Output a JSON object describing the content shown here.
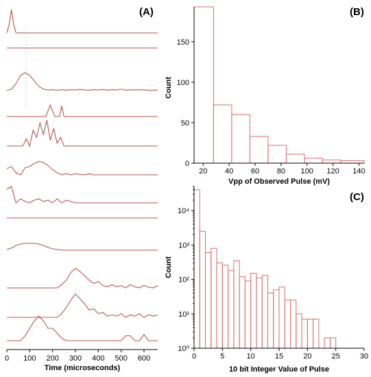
{
  "colors": {
    "trace": "#b5524b",
    "bar": "#d96a6a",
    "axis": "#000000",
    "marker": "#c8d8e8"
  },
  "chart_data": [
    {
      "panel": "(A)",
      "type": "line",
      "xlabel": "Time (microseconds)",
      "xlim": [
        0,
        660
      ],
      "xticks": [
        0,
        100,
        200,
        300,
        400,
        500,
        600
      ],
      "series": [
        {
          "x": [
            0,
            10,
            20,
            30,
            40,
            660
          ],
          "y": [
            0,
            0.3,
            0.85,
            0.3,
            0,
            0
          ]
        },
        {
          "x": [
            0,
            660
          ],
          "y": [
            0,
            0
          ]
        },
        {
          "x": [
            0,
            20,
            40,
            60,
            80,
            100,
            120,
            140,
            160,
            180,
            200,
            220,
            240,
            260,
            280,
            300,
            320,
            340,
            360,
            380,
            400,
            420,
            440,
            460,
            480,
            500,
            520,
            540,
            560,
            580,
            600,
            620,
            640,
            660
          ],
          "y": [
            0,
            0.05,
            0.25,
            0.55,
            0.65,
            0.55,
            0.35,
            0.15,
            0.05,
            0.02,
            0.03,
            0.01,
            0.03,
            0.01,
            0.03,
            0.02,
            0.04,
            0.02,
            0.01,
            0.03,
            0.02,
            0.04,
            0.01,
            0.03,
            0.02,
            0.05,
            0.01,
            0.03,
            0.02,
            0.03,
            0.02,
            0.01,
            0,
            0.03
          ]
        },
        {
          "x": [
            0,
            170,
            190,
            210,
            230,
            240,
            250,
            270,
            660
          ],
          "y": [
            0,
            0,
            0.6,
            0,
            0,
            0.55,
            0,
            0,
            0
          ]
        },
        {
          "x": [
            0,
            70,
            85,
            100,
            115,
            130,
            145,
            160,
            175,
            190,
            205,
            220,
            235,
            250,
            660
          ],
          "y": [
            0,
            0,
            0.25,
            0,
            0.55,
            0.3,
            0.8,
            0.4,
            0.9,
            0.2,
            0.6,
            0.1,
            0.3,
            0,
            0
          ]
        },
        {
          "x": [
            0,
            20,
            40,
            60,
            80,
            100,
            120,
            140,
            160,
            180,
            200,
            220,
            240,
            260,
            280,
            300,
            320,
            340,
            360,
            380,
            400,
            420,
            440,
            660
          ],
          "y": [
            0.3,
            0.4,
            0.1,
            0.0,
            0.35,
            0.4,
            0.55,
            0.65,
            0.6,
            0.45,
            0.25,
            0.1,
            0.0,
            0.05,
            0.0,
            0.05,
            0.02,
            0.0,
            0.05,
            0.0,
            0.0,
            0.0,
            0.0,
            0.0
          ]
        },
        {
          "x": [
            0,
            20,
            40,
            60,
            80,
            100,
            120,
            140,
            160,
            180,
            200,
            220,
            240,
            260,
            280,
            300,
            320,
            340,
            360,
            660
          ],
          "y": [
            0.5,
            0.6,
            0.0,
            0.15,
            0.05,
            0.0,
            0.1,
            0.15,
            0.05,
            0.1,
            0.0,
            0.15,
            0.0,
            0.1,
            0.05,
            0.0,
            0.0,
            0.0,
            0.0,
            0.0
          ]
        },
        {
          "x": [
            0,
            660
          ],
          "y": [
            0,
            0
          ]
        },
        {
          "x": [
            0,
            20,
            40,
            60,
            80,
            100,
            120,
            140,
            160,
            180,
            200,
            220,
            240,
            260,
            280,
            660
          ],
          "y": [
            0.05,
            0.15,
            0.35,
            0.45,
            0.5,
            0.5,
            0.5,
            0.45,
            0.35,
            0.2,
            0.1,
            0.05,
            0.0,
            0.0,
            0.0,
            0.0
          ]
        },
        {
          "x": [
            0,
            220,
            240,
            260,
            280,
            300,
            320,
            340,
            360,
            380,
            400,
            420,
            440,
            460,
            480,
            500,
            520,
            540,
            560,
            580,
            600,
            620,
            640,
            660
          ],
          "y": [
            0,
            0,
            0.15,
            0.35,
            0.7,
            0.9,
            0.75,
            0.55,
            0.35,
            0.2,
            0.3,
            0.1,
            0.05,
            0.15,
            0.05,
            0.1,
            0.0,
            0.15,
            0.05,
            0.0,
            0.12,
            0.03,
            0.0,
            0.1
          ]
        },
        {
          "x": [
            0,
            220,
            240,
            260,
            280,
            300,
            320,
            340,
            360,
            380,
            400,
            420,
            440,
            460,
            480,
            500,
            520,
            540,
            560,
            580,
            600,
            620,
            640,
            660
          ],
          "y": [
            0,
            0,
            0.15,
            0.4,
            0.7,
            0.95,
            0.75,
            0.55,
            0.3,
            0.35,
            0.15,
            0.2,
            0.05,
            0.1,
            0.05,
            0.15,
            0.0,
            0.1,
            0.05,
            0.15,
            0.0,
            0.1,
            0.05,
            0.1
          ]
        },
        {
          "x": [
            0,
            60,
            80,
            100,
            120,
            140,
            160,
            180,
            200,
            220,
            240,
            260,
            500,
            520,
            540,
            560,
            580,
            600,
            620,
            660
          ],
          "y": [
            0,
            0,
            0.2,
            0.5,
            0.8,
            1.0,
            0.8,
            0.5,
            0.5,
            0.3,
            0.1,
            0.0,
            0.0,
            0.2,
            0.2,
            0.0,
            0.0,
            0.25,
            0.0,
            0.0
          ]
        }
      ]
    },
    {
      "panel": "(B)",
      "type": "bar",
      "xlabel": "Vpp of Observed Pulse (mV)",
      "ylabel": "Count",
      "xlim": [
        13,
        144
      ],
      "ylim": [
        0,
        193
      ],
      "xticks": [
        20,
        40,
        60,
        80,
        100,
        120,
        140
      ],
      "yticks": [
        0,
        50,
        100,
        150
      ],
      "bins": [
        [
          13,
          28
        ],
        [
          28,
          42
        ],
        [
          42,
          56
        ],
        [
          56,
          70
        ],
        [
          70,
          84
        ],
        [
          84,
          98
        ],
        [
          98,
          112
        ],
        [
          112,
          126
        ],
        [
          126,
          144
        ]
      ],
      "values": [
        193,
        72,
        60,
        33,
        22,
        11,
        6,
        4,
        3
      ]
    },
    {
      "panel": "(C)",
      "type": "bar",
      "xlabel": "10 bit Integer Value of Pulse",
      "ylabel": "Count",
      "yscale": "log",
      "xlim": [
        0,
        30
      ],
      "ylim": [
        1,
        50000
      ],
      "xticks": [
        0,
        5,
        10,
        15,
        20,
        25,
        30
      ],
      "yticks": [
        1,
        10,
        100,
        1000,
        10000
      ],
      "ytick_labels": [
        "10⁰",
        "10¹",
        "10²",
        "10³",
        "10⁴"
      ],
      "bin_width": 1,
      "categories": [
        0,
        1,
        2,
        3,
        4,
        5,
        6,
        7,
        8,
        9,
        10,
        11,
        12,
        13,
        14,
        15,
        16,
        17,
        18,
        19,
        20,
        21,
        22,
        23,
        24
      ],
      "values": [
        40000,
        2500,
        600,
        800,
        300,
        260,
        180,
        350,
        120,
        90,
        150,
        110,
        130,
        40,
        50,
        60,
        25,
        25,
        10,
        7,
        7,
        7,
        1,
        2,
        2
      ]
    }
  ]
}
